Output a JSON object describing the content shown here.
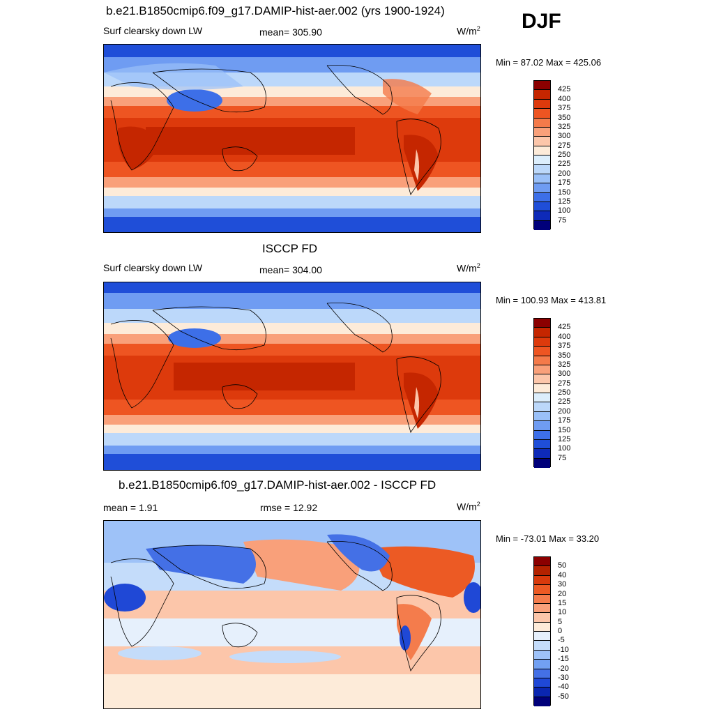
{
  "season": "DJF",
  "units_main": "W/m",
  "units_exp": "2",
  "panels": [
    {
      "title": "b.e21.B1850cmip6.f09_g17.DAMIP-hist-aer.002 (yrs 1900-1924)",
      "left_label": "Surf clearsky down LW",
      "center_label": "mean= 305.90",
      "minmax": "Min =  87.02 Max = 425.06"
    },
    {
      "title": "ISCCP FD",
      "left_label": "Surf clearsky down LW",
      "center_label": "mean= 304.00",
      "minmax": "Min = 100.93 Max = 413.81"
    },
    {
      "title": "b.e21.B1850cmip6.f09_g17.DAMIP-hist-aer.002 - ISCCP FD",
      "left_label": "mean =   1.91",
      "center_label": "rmse =  12.92",
      "minmax": "Min = -73.01 Max =  33.20"
    }
  ],
  "colorbar_abs": {
    "labels": [
      "425",
      "400",
      "375",
      "350",
      "325",
      "300",
      "275",
      "250",
      "225",
      "200",
      "175",
      "150",
      "125",
      "100",
      "75"
    ],
    "colors": [
      "#8b0000",
      "#c52600",
      "#dd3a0c",
      "#ee5522",
      "#f47a4a",
      "#f9a07a",
      "#fcc6aa",
      "#fdebd9",
      "#dceefc",
      "#bcd8fa",
      "#9ac0f8",
      "#6f9cf2",
      "#3d6fe8",
      "#1f4ed8",
      "#0e2ab8",
      "#00007a"
    ]
  },
  "colorbar_diff": {
    "labels": [
      "50",
      "40",
      "30",
      "20",
      "15",
      "10",
      "5",
      "0",
      "-5",
      "-10",
      "-15",
      "-20",
      "-30",
      "-40",
      "-50"
    ],
    "colors": [
      "#8b0000",
      "#b32200",
      "#d83a0c",
      "#ec5a24",
      "#f47c4c",
      "#f9a07a",
      "#fcc6aa",
      "#fdebd9",
      "#e6f0fc",
      "#c4dcfa",
      "#9ec2f8",
      "#72a0f2",
      "#4470e6",
      "#1f48d6",
      "#0a26b0",
      "#00007a"
    ]
  }
}
